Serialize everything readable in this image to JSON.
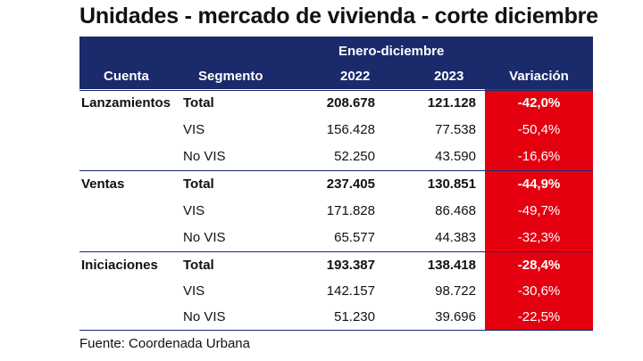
{
  "title": "Unidades - mercado de vivienda - corte diciembre",
  "header": {
    "period": "Enero-diciembre",
    "col_account": "Cuenta",
    "col_segment": "Segmento",
    "col_2022": "2022",
    "col_2023": "2023",
    "col_variation": "Variación"
  },
  "groups": [
    {
      "account": "Lanzamientos",
      "rows": [
        {
          "segment": "Total",
          "y2022": "208.678",
          "y2023": "121.128",
          "variation": "-42,0%"
        },
        {
          "segment": "VIS",
          "y2022": "156.428",
          "y2023": "77.538",
          "variation": "-50,4%"
        },
        {
          "segment": "No VIS",
          "y2022": "52.250",
          "y2023": "43.590",
          "variation": "-16,6%"
        }
      ]
    },
    {
      "account": "Ventas",
      "rows": [
        {
          "segment": "Total",
          "y2022": "237.405",
          "y2023": "130.851",
          "variation": "-44,9%"
        },
        {
          "segment": "VIS",
          "y2022": "171.828",
          "y2023": "86.468",
          "variation": "-49,7%"
        },
        {
          "segment": "No VIS",
          "y2022": "65.577",
          "y2023": "44.383",
          "variation": "-32,3%"
        }
      ]
    },
    {
      "account": "Iniciaciones",
      "rows": [
        {
          "segment": "Total",
          "y2022": "193.387",
          "y2023": "138.418",
          "variation": "-28,4%"
        },
        {
          "segment": "VIS",
          "y2022": "142.157",
          "y2023": "98.722",
          "variation": "-30,6%"
        },
        {
          "segment": "No VIS",
          "y2022": "51.230",
          "y2023": "39.696",
          "variation": "-22,5%"
        }
      ]
    }
  ],
  "source": "Fuente: Coordenada Urbana",
  "colors": {
    "header_bg": "#1b2a6b",
    "variation_bg": "#e4000f",
    "text": "#111111"
  }
}
